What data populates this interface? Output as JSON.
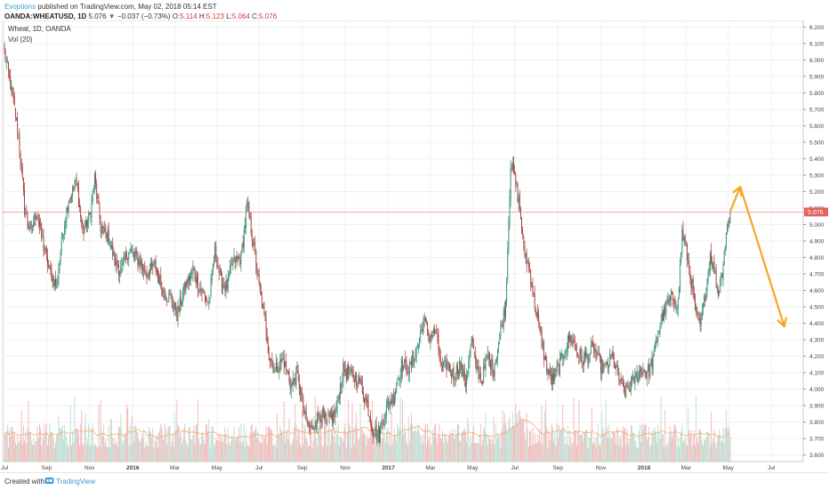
{
  "header": {
    "author": "Evoptions",
    "published_text": "published on TradingView.com, May 02, 2018 05:14 EST",
    "symbol": "OANDA:WHEATUSD, 1D",
    "last": "5.076",
    "change_arrow": "▼",
    "change": "−0.037 (−0.73%)",
    "o_label": "O:",
    "o_value": "5.114",
    "h_label": "H:",
    "h_value": "5.123",
    "l_label": "L:",
    "l_value": "5.064",
    "c_label": "C:",
    "c_value": "5.076"
  },
  "footer": {
    "created_with": "Created with",
    "brand": "TradingView",
    "logo_icon": "tradingview-logo-icon"
  },
  "chart_data": {
    "type": "candlestick",
    "title": "Wheat, 1D, OANDA",
    "indicator_label": "Vol (20)",
    "price_axis": {
      "ticks": [
        "6.200",
        "6.100",
        "6.000",
        "5.900",
        "5.800",
        "5.700",
        "5.600",
        "5.500",
        "5.400",
        "5.300",
        "5.200",
        "5.100",
        "5.000",
        "4.900",
        "4.800",
        "4.700",
        "4.600",
        "4.500",
        "4.400",
        "4.300",
        "4.200",
        "4.100",
        "4.000",
        "3.900",
        "3.800",
        "3.700",
        "3.600"
      ],
      "range": [
        3.56,
        6.24
      ]
    },
    "time_axis": {
      "labels": [
        {
          "text": "Jul",
          "index": 0,
          "bold": false
        },
        {
          "text": "Sep",
          "index": 42,
          "bold": false
        },
        {
          "text": "Nov",
          "index": 85,
          "bold": false
        },
        {
          "text": "2016",
          "index": 128,
          "bold": true
        },
        {
          "text": "Mar",
          "index": 170,
          "bold": false
        },
        {
          "text": "May",
          "index": 212,
          "bold": false
        },
        {
          "text": "Jul",
          "index": 254,
          "bold": false
        },
        {
          "text": "Sep",
          "index": 297,
          "bold": false
        },
        {
          "text": "Nov",
          "index": 340,
          "bold": false
        },
        {
          "text": "2017",
          "index": 383,
          "bold": true
        },
        {
          "text": "Mar",
          "index": 425,
          "bold": false
        },
        {
          "text": "May",
          "index": 467,
          "bold": false
        },
        {
          "text": "Jul",
          "index": 509,
          "bold": false
        },
        {
          "text": "Sep",
          "index": 552,
          "bold": false
        },
        {
          "text": "Nov",
          "index": 595,
          "bold": false
        },
        {
          "text": "2018",
          "index": 638,
          "bold": true
        },
        {
          "text": "Mar",
          "index": 680,
          "bold": false
        },
        {
          "text": "May",
          "index": 722,
          "bold": false
        },
        {
          "text": "Jul",
          "index": 765,
          "bold": false
        }
      ],
      "total_bars": 805
    },
    "last_price": 5.076,
    "last_price_label": "5.076",
    "close_path": [
      {
        "i": 0,
        "p": 6.05
      },
      {
        "i": 6,
        "p": 5.85
      },
      {
        "i": 14,
        "p": 5.55
      },
      {
        "i": 20,
        "p": 5.1
      },
      {
        "i": 26,
        "p": 4.95
      },
      {
        "i": 32,
        "p": 5.08
      },
      {
        "i": 38,
        "p": 4.9
      },
      {
        "i": 45,
        "p": 4.72
      },
      {
        "i": 52,
        "p": 4.62
      },
      {
        "i": 58,
        "p": 4.95
      },
      {
        "i": 64,
        "p": 5.15
      },
      {
        "i": 72,
        "p": 5.25
      },
      {
        "i": 78,
        "p": 4.95
      },
      {
        "i": 85,
        "p": 5.05
      },
      {
        "i": 90,
        "p": 5.28
      },
      {
        "i": 96,
        "p": 4.98
      },
      {
        "i": 104,
        "p": 4.92
      },
      {
        "i": 110,
        "p": 4.78
      },
      {
        "i": 116,
        "p": 4.72
      },
      {
        "i": 124,
        "p": 4.85
      },
      {
        "i": 134,
        "p": 4.78
      },
      {
        "i": 142,
        "p": 4.7
      },
      {
        "i": 150,
        "p": 4.75
      },
      {
        "i": 158,
        "p": 4.6
      },
      {
        "i": 166,
        "p": 4.55
      },
      {
        "i": 172,
        "p": 4.45
      },
      {
        "i": 180,
        "p": 4.62
      },
      {
        "i": 188,
        "p": 4.72
      },
      {
        "i": 196,
        "p": 4.6
      },
      {
        "i": 204,
        "p": 4.52
      },
      {
        "i": 210,
        "p": 4.85
      },
      {
        "i": 216,
        "p": 4.65
      },
      {
        "i": 222,
        "p": 4.62
      },
      {
        "i": 228,
        "p": 4.78
      },
      {
        "i": 236,
        "p": 4.8
      },
      {
        "i": 242,
        "p": 5.12
      },
      {
        "i": 248,
        "p": 4.9
      },
      {
        "i": 254,
        "p": 4.62
      },
      {
        "i": 260,
        "p": 4.42
      },
      {
        "i": 264,
        "p": 4.2
      },
      {
        "i": 270,
        "p": 4.12
      },
      {
        "i": 278,
        "p": 4.18
      },
      {
        "i": 286,
        "p": 4.02
      },
      {
        "i": 292,
        "p": 4.1
      },
      {
        "i": 300,
        "p": 3.82
      },
      {
        "i": 306,
        "p": 3.75
      },
      {
        "i": 314,
        "p": 3.85
      },
      {
        "i": 322,
        "p": 3.8
      },
      {
        "i": 330,
        "p": 3.85
      },
      {
        "i": 338,
        "p": 4.12
      },
      {
        "i": 346,
        "p": 4.08
      },
      {
        "i": 354,
        "p": 4.05
      },
      {
        "i": 362,
        "p": 3.9
      },
      {
        "i": 368,
        "p": 3.75
      },
      {
        "i": 374,
        "p": 3.72
      },
      {
        "i": 380,
        "p": 3.88
      },
      {
        "i": 388,
        "p": 3.95
      },
      {
        "i": 396,
        "p": 4.15
      },
      {
        "i": 404,
        "p": 4.12
      },
      {
        "i": 412,
        "p": 4.25
      },
      {
        "i": 418,
        "p": 4.42
      },
      {
        "i": 424,
        "p": 4.32
      },
      {
        "i": 430,
        "p": 4.35
      },
      {
        "i": 436,
        "p": 4.12
      },
      {
        "i": 442,
        "p": 4.15
      },
      {
        "i": 448,
        "p": 4.08
      },
      {
        "i": 454,
        "p": 4.15
      },
      {
        "i": 460,
        "p": 4.05
      },
      {
        "i": 466,
        "p": 4.3
      },
      {
        "i": 470,
        "p": 4.15
      },
      {
        "i": 476,
        "p": 4.05
      },
      {
        "i": 482,
        "p": 4.2
      },
      {
        "i": 488,
        "p": 4.12
      },
      {
        "i": 494,
        "p": 4.32
      },
      {
        "i": 500,
        "p": 4.52
      },
      {
        "i": 505,
        "p": 5.38
      },
      {
        "i": 510,
        "p": 5.25
      },
      {
        "i": 514,
        "p": 5.1
      },
      {
        "i": 518,
        "p": 4.85
      },
      {
        "i": 524,
        "p": 4.72
      },
      {
        "i": 528,
        "p": 4.55
      },
      {
        "i": 534,
        "p": 4.35
      },
      {
        "i": 540,
        "p": 4.15
      },
      {
        "i": 546,
        "p": 4.05
      },
      {
        "i": 552,
        "p": 4.12
      },
      {
        "i": 558,
        "p": 4.22
      },
      {
        "i": 564,
        "p": 4.32
      },
      {
        "i": 570,
        "p": 4.25
      },
      {
        "i": 576,
        "p": 4.18
      },
      {
        "i": 582,
        "p": 4.2
      },
      {
        "i": 588,
        "p": 4.25
      },
      {
        "i": 594,
        "p": 4.15
      },
      {
        "i": 600,
        "p": 4.12
      },
      {
        "i": 606,
        "p": 4.2
      },
      {
        "i": 612,
        "p": 4.08
      },
      {
        "i": 618,
        "p": 3.98
      },
      {
        "i": 624,
        "p": 4.02
      },
      {
        "i": 630,
        "p": 4.08
      },
      {
        "i": 636,
        "p": 4.12
      },
      {
        "i": 642,
        "p": 4.1
      },
      {
        "i": 648,
        "p": 4.2
      },
      {
        "i": 654,
        "p": 4.4
      },
      {
        "i": 660,
        "p": 4.5
      },
      {
        "i": 666,
        "p": 4.55
      },
      {
        "i": 672,
        "p": 4.52
      },
      {
        "i": 676,
        "p": 4.95
      },
      {
        "i": 680,
        "p": 4.85
      },
      {
        "i": 686,
        "p": 4.62
      },
      {
        "i": 690,
        "p": 4.45
      },
      {
        "i": 694,
        "p": 4.38
      },
      {
        "i": 700,
        "p": 4.62
      },
      {
        "i": 704,
        "p": 4.82
      },
      {
        "i": 708,
        "p": 4.72
      },
      {
        "i": 712,
        "p": 4.58
      },
      {
        "i": 716,
        "p": 4.72
      },
      {
        "i": 720,
        "p": 4.95
      },
      {
        "i": 724,
        "p": 5.076
      }
    ],
    "annotation": {
      "type": "zigzag-arrow",
      "color": "#f5a623",
      "points": [
        {
          "i": 724,
          "p": 5.08
        },
        {
          "i": 734,
          "p": 5.23
        },
        {
          "i": 778,
          "p": 4.38
        }
      ]
    }
  }
}
